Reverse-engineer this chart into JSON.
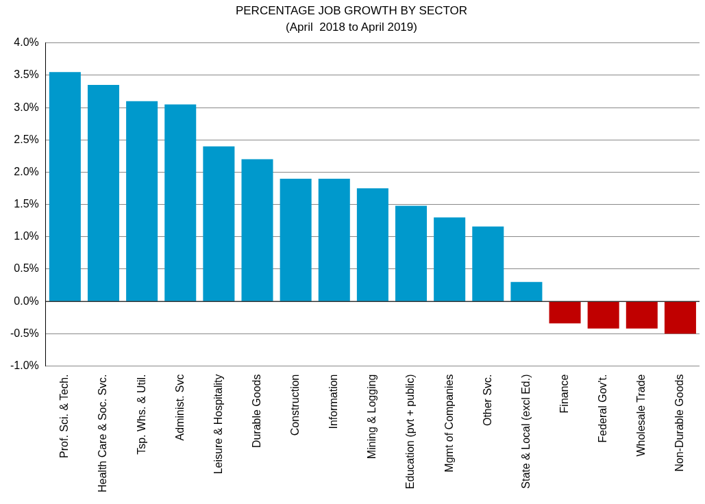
{
  "chart_data": {
    "type": "bar",
    "title": "PERCENTAGE JOB GROWTH BY SECTOR",
    "subtitle": "(April  2018 to April 2019)",
    "categories": [
      "Prof. Sci. & Tech.",
      "Health Care & Soc. Svc.",
      "Tsp. Whs. & Util.",
      "Administ. Svc",
      "Leisure & Hospitality",
      "Durable Goods",
      "Construction",
      "Information",
      "Mining & Logging",
      "Education (pvt + public)",
      "Mgmt of Companies",
      "Other Svc.",
      "State & Local (excl Ed.)",
      "Finance",
      "Federal Gov't.",
      "Wholesale Trade",
      "Non-Durable Goods"
    ],
    "values": [
      3.55,
      3.35,
      3.1,
      3.05,
      2.4,
      2.2,
      1.9,
      1.9,
      1.75,
      1.48,
      1.3,
      1.16,
      0.3,
      -0.34,
      -0.42,
      -0.42,
      -0.5
    ],
    "colors": [
      "#0099cc",
      "#0099cc",
      "#0099cc",
      "#0099cc",
      "#0099cc",
      "#0099cc",
      "#0099cc",
      "#0099cc",
      "#0099cc",
      "#0099cc",
      "#0099cc",
      "#0099cc",
      "#0099cc",
      "#c00000",
      "#c00000",
      "#c00000",
      "#c00000"
    ],
    "ylim": [
      -1,
      4
    ],
    "yticks": [
      {
        "value": -1,
        "label": "-1.0%"
      },
      {
        "value": -0.5,
        "label": "-0.5%"
      },
      {
        "value": 0,
        "label": "0.0%"
      },
      {
        "value": 0.5,
        "label": "0.5%"
      },
      {
        "value": 1,
        "label": "1.0%"
      },
      {
        "value": 1.5,
        "label": "1.5%"
      },
      {
        "value": 2,
        "label": "2.0%"
      },
      {
        "value": 2.5,
        "label": "2.5%"
      },
      {
        "value": 3,
        "label": "3.0%"
      },
      {
        "value": 3.5,
        "label": "3.5%"
      },
      {
        "value": 4,
        "label": "4.0%"
      }
    ],
    "grid": "y"
  }
}
